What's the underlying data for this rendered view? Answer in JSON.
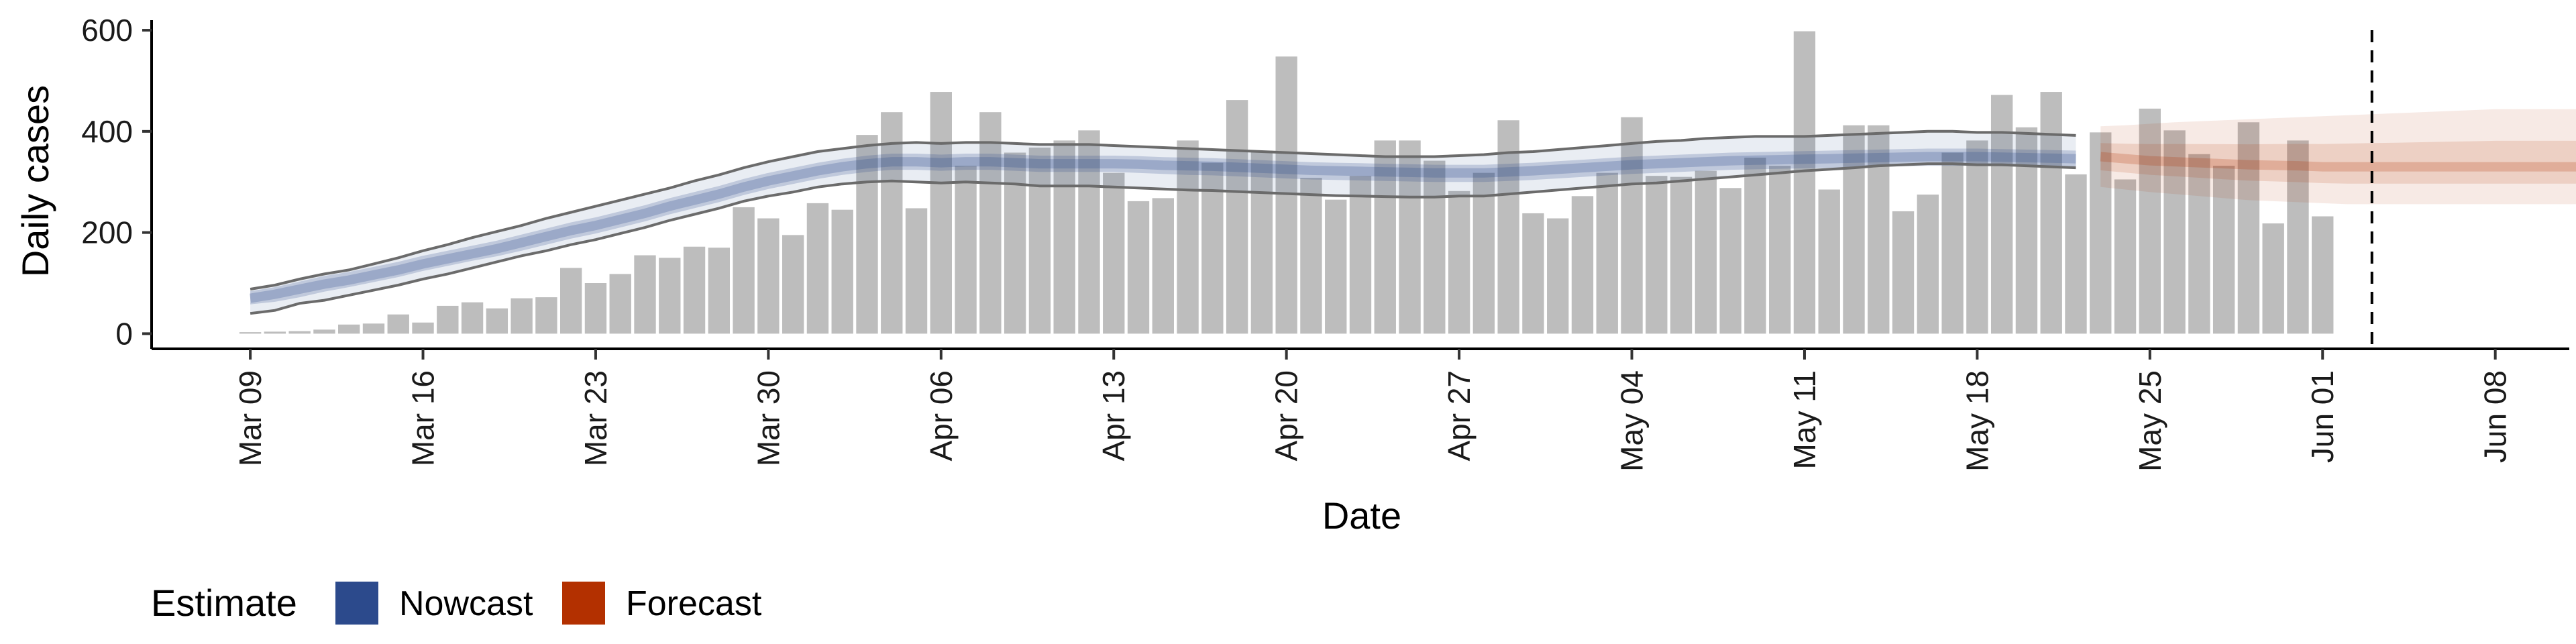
{
  "chart_data": {
    "type": "bar",
    "xlabel": "Date",
    "ylabel": "Daily cases",
    "ylim": [
      -30,
      620
    ],
    "yticks": [
      0,
      200,
      400,
      600
    ],
    "xlim": [
      "2020-03-05",
      "2020-06-11"
    ],
    "xticks": [
      {
        "date": "2020-03-09",
        "label": "Mar 09"
      },
      {
        "date": "2020-03-16",
        "label": "Mar 16"
      },
      {
        "date": "2020-03-23",
        "label": "Mar 23"
      },
      {
        "date": "2020-03-30",
        "label": "Mar 30"
      },
      {
        "date": "2020-04-06",
        "label": "Apr 06"
      },
      {
        "date": "2020-04-13",
        "label": "Apr 13"
      },
      {
        "date": "2020-04-20",
        "label": "Apr 20"
      },
      {
        "date": "2020-04-27",
        "label": "Apr 27"
      },
      {
        "date": "2020-05-04",
        "label": "May 04"
      },
      {
        "date": "2020-05-11",
        "label": "May 11"
      },
      {
        "date": "2020-05-18",
        "label": "May 18"
      },
      {
        "date": "2020-05-25",
        "label": "May 25"
      },
      {
        "date": "2020-06-01",
        "label": "Jun 01"
      },
      {
        "date": "2020-06-08",
        "label": "Jun 08"
      }
    ],
    "bars": {
      "start_date": "2020-03-09",
      "values": [
        3,
        4,
        5,
        8,
        18,
        20,
        38,
        22,
        55,
        62,
        50,
        70,
        72,
        130,
        100,
        118,
        155,
        150,
        172,
        170,
        250,
        228,
        195,
        258,
        245,
        393,
        438,
        248,
        478,
        332,
        438,
        358,
        368,
        382,
        402,
        318,
        262,
        268,
        382,
        338,
        462,
        362,
        548,
        308,
        265,
        312,
        382,
        382,
        342,
        282,
        318,
        422,
        238,
        228,
        272,
        318,
        428,
        312,
        310,
        322,
        288,
        348,
        332,
        598,
        285,
        412,
        412,
        242,
        275,
        358,
        382,
        472,
        408,
        478,
        315,
        398,
        305,
        445,
        402,
        355,
        332,
        418,
        218,
        382,
        232
      ],
      "color": "#bdbdbd"
    },
    "bands": {
      "start_date": "2020-03-09",
      "nowcast_median": [
        70,
        78,
        88,
        98,
        106,
        116,
        126,
        138,
        148,
        158,
        168,
        180,
        192,
        204,
        214,
        226,
        238,
        252,
        264,
        276,
        290,
        302,
        312,
        322,
        330,
        336,
        340,
        340,
        338,
        340,
        340,
        338,
        336,
        336,
        336,
        336,
        335,
        333,
        332,
        331,
        329,
        327,
        325,
        323,
        322,
        321,
        320,
        319,
        318,
        318,
        318,
        320,
        322,
        325,
        328,
        331,
        334,
        336,
        338,
        340,
        342,
        343,
        344,
        345,
        346,
        347,
        348,
        349,
        350,
        350,
        350,
        349,
        348,
        347,
        346
      ],
      "nowcast_lower": [
        58,
        63,
        72,
        83,
        92,
        102,
        112,
        124,
        134,
        144,
        153,
        164,
        176,
        188,
        198,
        210,
        222,
        236,
        248,
        260,
        274,
        286,
        296,
        306,
        314,
        320,
        324,
        324,
        322,
        324,
        324,
        322,
        320,
        320,
        320,
        320,
        318,
        316,
        314,
        313,
        311,
        309,
        307,
        305,
        304,
        303,
        302,
        301,
        300,
        300,
        300,
        302,
        304,
        307,
        310,
        313,
        316,
        318,
        320,
        322,
        324,
        325,
        326,
        327,
        328,
        329,
        330,
        331,
        332,
        332,
        332,
        331,
        330,
        329,
        328
      ],
      "nowcast_upper": [
        84,
        92,
        103,
        114,
        122,
        132,
        142,
        154,
        164,
        174,
        184,
        196,
        208,
        220,
        230,
        242,
        254,
        268,
        280,
        292,
        306,
        318,
        328,
        338,
        346,
        352,
        356,
        356,
        354,
        356,
        356,
        354,
        352,
        352,
        352,
        352,
        351,
        349,
        348,
        347,
        345,
        343,
        341,
        339,
        338,
        337,
        336,
        335,
        334,
        334,
        334,
        336,
        338,
        341,
        344,
        347,
        350,
        352,
        354,
        356,
        358,
        359,
        360,
        361,
        362,
        363,
        364,
        365,
        366,
        366,
        366,
        365,
        364,
        363,
        362
      ],
      "nowcast_outer_lower": [
        40,
        46,
        60,
        66,
        76,
        86,
        96,
        108,
        118,
        130,
        142,
        154,
        164,
        176,
        186,
        198,
        210,
        224,
        236,
        248,
        262,
        272,
        280,
        290,
        296,
        300,
        302,
        300,
        298,
        300,
        298,
        296,
        292,
        292,
        292,
        290,
        288,
        286,
        284,
        283,
        281,
        279,
        277,
        275,
        273,
        272,
        271,
        270,
        270,
        272,
        272,
        276,
        280,
        284,
        288,
        292,
        296,
        298,
        302,
        306,
        310,
        314,
        318,
        322,
        325,
        328,
        332,
        334,
        336,
        336,
        334,
        334,
        332,
        330,
        328
      ],
      "nowcast_outer_upper": [
        88,
        96,
        108,
        118,
        126,
        138,
        150,
        164,
        176,
        190,
        202,
        214,
        228,
        240,
        252,
        264,
        276,
        288,
        302,
        314,
        328,
        340,
        350,
        360,
        366,
        372,
        376,
        378,
        376,
        378,
        378,
        376,
        374,
        374,
        374,
        372,
        370,
        368,
        366,
        364,
        362,
        360,
        358,
        356,
        354,
        352,
        350,
        350,
        350,
        352,
        354,
        358,
        360,
        364,
        368,
        372,
        376,
        380,
        382,
        386,
        388,
        390,
        390,
        390,
        392,
        394,
        396,
        398,
        400,
        400,
        398,
        398,
        396,
        394,
        392
      ],
      "forecast_start_date": "2020-05-23",
      "forecast_median": [
        350,
        346,
        342,
        340,
        338,
        336,
        334,
        333,
        332,
        330,
        330,
        330,
        330,
        330,
        330,
        330,
        330,
        330,
        330,
        330,
        330
      ],
      "forecast_lower": [
        290,
        285,
        280,
        276,
        272,
        268,
        264,
        262,
        260,
        258,
        256,
        256,
        256,
        256,
        256,
        256,
        256,
        256,
        256,
        256,
        256
      ],
      "forecast_upper": [
        410,
        412,
        415,
        418,
        420,
        422,
        424,
        426,
        428,
        430,
        432,
        434,
        436,
        438,
        440,
        442,
        444,
        444,
        444,
        444,
        444
      ]
    },
    "nowcast_color": "#2c4a8c",
    "forecast_color": "#b33000",
    "dashed_line_date": "2020-06-03",
    "legend": {
      "title": "Estimate",
      "entries": [
        "Nowcast",
        "Forecast"
      ],
      "position": "bottom"
    },
    "grid": false
  }
}
